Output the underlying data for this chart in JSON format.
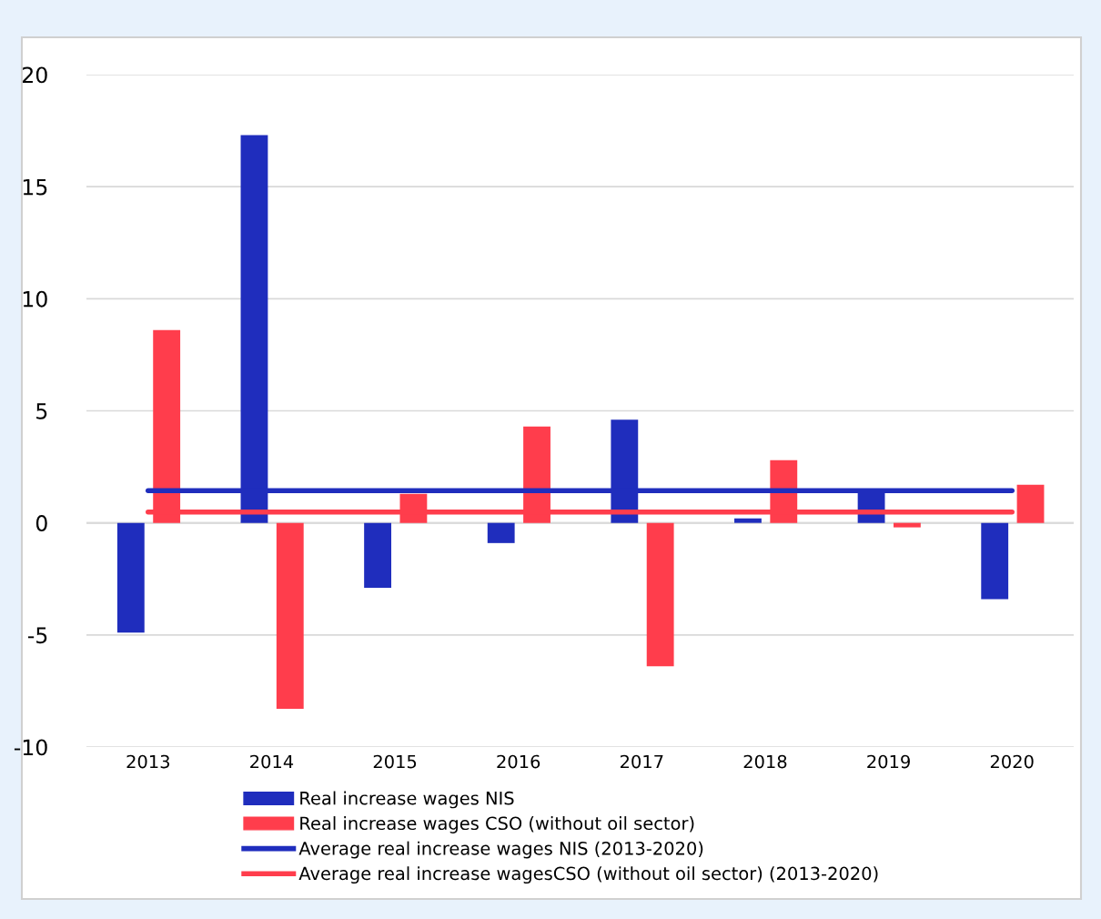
{
  "chart_data": {
    "type": "bar",
    "categories": [
      "2013",
      "2014",
      "2015",
      "2016",
      "2017",
      "2018",
      "2019",
      "2020"
    ],
    "series": [
      {
        "name": "Real increase wages NIS",
        "color": "#1f2dbd",
        "values": [
          -4.9,
          17.3,
          -2.9,
          -0.9,
          4.6,
          0.2,
          1.5,
          -3.4
        ]
      },
      {
        "name": "Real increase wages CSO (without oil sector)",
        "color": "#ff3d4c",
        "values": [
          8.6,
          -8.3,
          1.3,
          4.3,
          -6.4,
          2.8,
          -0.2,
          1.7
        ]
      },
      {
        "name": "Average real increase wages NIS (2013-2020)",
        "color": "#1f2dbd",
        "type": "line",
        "values": [
          1.44,
          1.44,
          1.44,
          1.44,
          1.44,
          1.44,
          1.44,
          1.44
        ]
      },
      {
        "name": "Average real increase wagesCSO (without oil sector) (2013-2020)",
        "color": "#ff3d4c",
        "type": "line",
        "values": [
          0.48,
          0.48,
          0.48,
          0.48,
          0.48,
          0.48,
          0.48,
          0.48
        ]
      }
    ],
    "ylim": [
      -10,
      20
    ],
    "yticks": [
      -10,
      -5,
      0,
      5,
      10,
      15,
      20
    ],
    "grid": "y",
    "legend": "bottom"
  }
}
